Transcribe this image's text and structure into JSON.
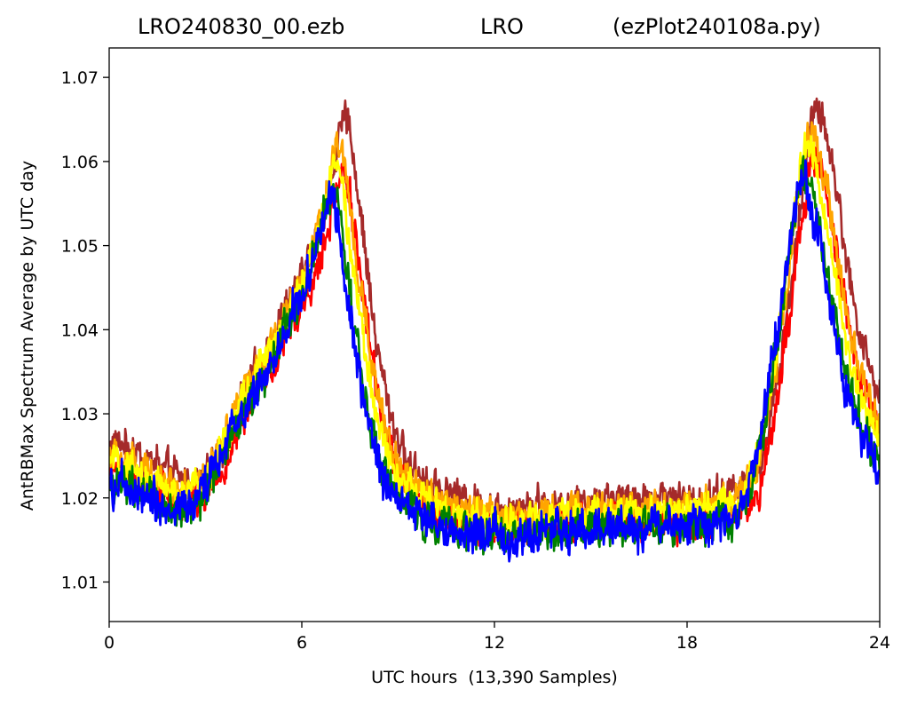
{
  "chart_data": {
    "type": "line",
    "title_left": "LRO240830_00.ezb",
    "title_center": "LRO",
    "title_right": "(ezPlot240108a.py)",
    "xlabel": "UTC hours  (13,390 Samples)",
    "ylabel": "AntRBMax Spectrum Average by UTC day",
    "xlim": [
      0,
      24
    ],
    "ylim": [
      1.0053,
      1.0735
    ],
    "x_ticks": [
      0,
      6,
      12,
      18,
      24
    ],
    "y_ticks": [
      1.01,
      1.02,
      1.03,
      1.04,
      1.05,
      1.06,
      1.07
    ],
    "y_tick_labels": [
      "1.01",
      "1.02",
      "1.03",
      "1.04",
      "1.05",
      "1.06",
      "1.07"
    ],
    "grid": false,
    "legend": "none",
    "series_order_drawn": [
      "brown",
      "red",
      "orange",
      "yellow",
      "green",
      "blue"
    ],
    "series": [
      {
        "color": "#a52a2a",
        "x_shift": 0.35,
        "offset": 0.0035,
        "peak_scale": 1.08,
        "noise": 0.0027
      },
      {
        "color": "#ff0000",
        "x_shift": 0.28,
        "offset": 0.0008,
        "peak_scale": 1.0,
        "noise": 0.0029
      },
      {
        "color": "#ffa500",
        "x_shift": 0.15,
        "offset": 0.0025,
        "peak_scale": 1.03,
        "noise": 0.0027
      },
      {
        "color": "#ffff00",
        "x_shift": 0.05,
        "offset": 0.0018,
        "peak_scale": 1.0,
        "noise": 0.0027
      },
      {
        "color": "#008000",
        "x_shift": -0.05,
        "offset": 0.0,
        "peak_scale": 0.97,
        "noise": 0.003
      },
      {
        "color": "#0000ff",
        "x_shift": -0.12,
        "offset": 0.0,
        "peak_scale": 0.95,
        "noise": 0.0032
      }
    ],
    "base_profile": [
      [
        0.0,
        1.0225
      ],
      [
        0.5,
        1.0215
      ],
      [
        1.0,
        1.0205
      ],
      [
        1.5,
        1.0195
      ],
      [
        2.0,
        1.0185
      ],
      [
        2.5,
        1.019
      ],
      [
        3.0,
        1.0205
      ],
      [
        3.5,
        1.0245
      ],
      [
        4.0,
        1.029
      ],
      [
        4.5,
        1.0325
      ],
      [
        5.0,
        1.036
      ],
      [
        5.5,
        1.04
      ],
      [
        6.0,
        1.044
      ],
      [
        6.5,
        1.05
      ],
      [
        6.8,
        1.056
      ],
      [
        7.0,
        1.0585
      ],
      [
        7.2,
        1.056
      ],
      [
        7.5,
        1.047
      ],
      [
        8.0,
        1.033
      ],
      [
        8.5,
        1.0245
      ],
      [
        9.0,
        1.02
      ],
      [
        10.0,
        1.0175
      ],
      [
        11.0,
        1.016
      ],
      [
        12.0,
        1.0155
      ],
      [
        14.0,
        1.016
      ],
      [
        16.0,
        1.0165
      ],
      [
        18.0,
        1.0165
      ],
      [
        19.5,
        1.0175
      ],
      [
        20.0,
        1.0205
      ],
      [
        20.5,
        1.03
      ],
      [
        21.0,
        1.043
      ],
      [
        21.3,
        1.052
      ],
      [
        21.6,
        1.0595
      ],
      [
        21.9,
        1.0585
      ],
      [
        22.2,
        1.053
      ],
      [
        22.5,
        1.0455
      ],
      [
        23.0,
        1.035
      ],
      [
        23.5,
        1.029
      ],
      [
        24.0,
        1.024
      ]
    ]
  }
}
